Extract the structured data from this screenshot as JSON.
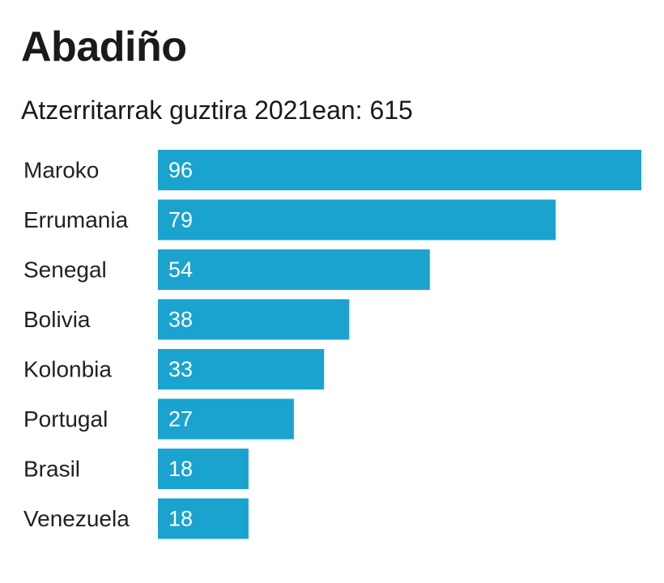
{
  "title": "Abadiño",
  "subtitle": "Atzerritarrak guztira 2021ean: 615",
  "colors": {
    "bar": "#1ba3cf",
    "value_label": "#ffffff",
    "category_label": "#222222"
  },
  "chart_data": {
    "type": "bar",
    "orientation": "horizontal",
    "title": "Abadiño",
    "subtitle": "Atzerritarrak guztira 2021ean: 615",
    "xlabel": "",
    "ylabel": "",
    "categories": [
      "Maroko",
      "Errumania",
      "Senegal",
      "Bolivia",
      "Kolonbia",
      "Portugal",
      "Brasil",
      "Venezuela"
    ],
    "values": [
      96,
      79,
      54,
      38,
      33,
      27,
      18,
      18
    ],
    "xlim": [
      0,
      96
    ],
    "grid": false,
    "legend": "none",
    "data_labels": "inside-left"
  }
}
